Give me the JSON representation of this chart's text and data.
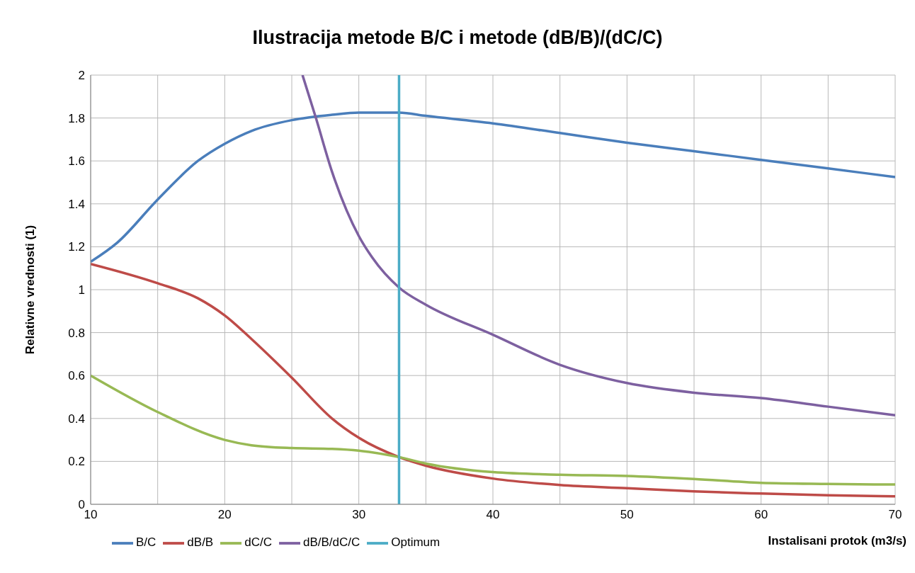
{
  "chart_data": {
    "type": "line",
    "title": "Ilustracija metode B/C i  metode (dB/B)/(dC/C)",
    "xlabel": "Instalisani protok  (m3/s)",
    "ylabel": "Relativne vrednosti  (1)",
    "xlim": [
      10,
      70
    ],
    "xticks": [
      10,
      {
        "value": 15,
        "label": null
      },
      20,
      {
        "value": 25,
        "label": null
      },
      30,
      {
        "value": 35,
        "label": null
      },
      40,
      {
        "value": 45,
        "label": null
      },
      50,
      {
        "value": 55,
        "label": null
      },
      60,
      {
        "value": 65,
        "label": null
      },
      70
    ],
    "ylim": [
      0,
      2
    ],
    "yticks": [
      0,
      0.2,
      0.4,
      0.6,
      0.8,
      1,
      1.2,
      1.4,
      1.6,
      1.8,
      2
    ],
    "grid": true,
    "legend": "bottom left",
    "marker": "none",
    "line_style": "solid",
    "series": [
      {
        "name": "B/C",
        "color": "#4a7ebb",
        "x": [
          10,
          12,
          15,
          18,
          20,
          22,
          25,
          28,
          30,
          33,
          35,
          40,
          45,
          50,
          55,
          60,
          65,
          70
        ],
        "values": [
          1.13,
          1.22,
          1.42,
          1.6,
          1.68,
          1.74,
          1.79,
          1.815,
          1.825,
          1.825,
          1.81,
          1.775,
          1.73,
          1.685,
          1.645,
          1.605,
          1.565,
          1.525
        ]
      },
      {
        "name": "dB/B",
        "color": "#be4b48",
        "x": [
          10,
          15,
          18,
          20,
          22,
          25,
          28,
          30,
          33,
          35,
          40,
          45,
          50,
          55,
          60,
          65,
          70
        ],
        "values": [
          1.12,
          1.03,
          0.96,
          0.88,
          0.77,
          0.59,
          0.4,
          0.31,
          0.22,
          0.18,
          0.12,
          0.09,
          0.075,
          0.06,
          0.05,
          0.042,
          0.037
        ]
      },
      {
        "name": "dC/C",
        "color": "#98b954",
        "x": [
          10,
          15,
          20,
          22,
          25,
          28,
          30,
          33,
          35,
          40,
          45,
          50,
          55,
          60,
          65,
          70
        ],
        "values": [
          0.6,
          0.43,
          0.3,
          0.275,
          0.262,
          0.258,
          0.25,
          0.22,
          0.19,
          0.15,
          0.138,
          0.132,
          0.118,
          0.1,
          0.095,
          0.092
        ]
      },
      {
        "name": "dB/B/dC/C",
        "color": "#7d60a0",
        "x": [
          25.8,
          26.8,
          28,
          30,
          31,
          33,
          35,
          40,
          45,
          50,
          55,
          60,
          65,
          70
        ],
        "values": [
          2,
          1.8,
          1.55,
          1.25,
          1.15,
          1.01,
          0.93,
          0.79,
          0.65,
          0.565,
          0.52,
          0.495,
          0.455,
          0.415
        ]
      },
      {
        "name": "Optimum",
        "color": "#4bacc6",
        "x": [
          33,
          33
        ],
        "values": [
          0,
          2
        ]
      }
    ]
  }
}
